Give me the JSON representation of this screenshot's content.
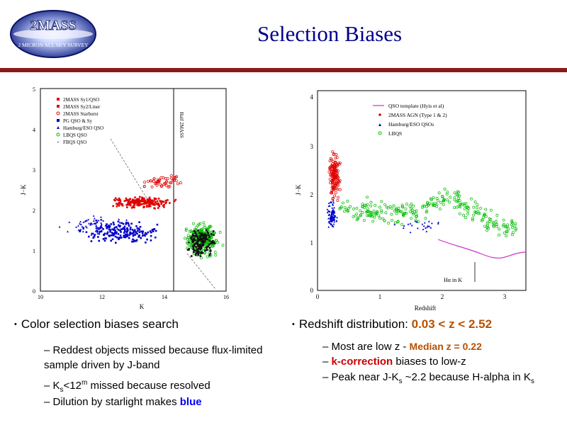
{
  "logo": {
    "name": "2MASS",
    "tagline": "2 MICRON ALL SKY SURVEY"
  },
  "title": "Selection Biases",
  "left_plot": {
    "y_ticks": [
      "5",
      "4",
      "3",
      "2",
      "1",
      "0"
    ],
    "x_ticks": [
      "10",
      "12",
      "14",
      "16"
    ],
    "y_label": "J−K",
    "x_label": "K",
    "legend": [
      "2MASS Sy1/QSO",
      "2MASS Sy2/Liner",
      "2MASS Starburst",
      "PG QSO & Sy",
      "Hamburg/ESO QSO",
      "LBQS QSO",
      "FBQS QSO"
    ],
    "vertical_label": "Half 2MASS"
  },
  "right_plot": {
    "y_ticks": [
      "4",
      "3",
      "2",
      "1",
      "0"
    ],
    "x_ticks": [
      "0",
      "1",
      "2",
      "3"
    ],
    "y_label": "J−K",
    "x_label": "Redshift",
    "legend": [
      "QSO template (Hyis et al)",
      "2MASS AGN (Type 1 & 2)",
      "Hamburg/ESO QSOs",
      "LBQS"
    ],
    "annotation": "Hα in K"
  },
  "left_text": {
    "bullet": "Color selection biases search",
    "item1": "– Reddest objects missed because flux-limited sample driven by J-band",
    "item2_pre": "– K",
    "item2_sub": "s",
    "item2_mid": "<12",
    "item2_sup": "m",
    "item2_post": " missed because resolved",
    "item3_pre": "– Dilution by starlight makes ",
    "item3_hl": "blue"
  },
  "right_text": {
    "bullet_pre": "Redshift distribution: ",
    "bullet_hl": "0.03 < z < 2.52",
    "item1_pre": "– Most are low z - ",
    "item1_hl": "Median z = 0.22",
    "item2_pre": "– ",
    "item2_hl": "k-correction",
    "item2_post": " biases to low-z",
    "item3_pre": "– Peak near J-K",
    "item3_sub": "s",
    "item3_post": " ~2.2 because H-alpha in K",
    "item3_sub2": "s"
  },
  "colors": {
    "title": "#00008b",
    "rule": "#8b1a1a",
    "highlight": "#b85000",
    "blue": "#0000ff",
    "red": "#cc0000"
  }
}
